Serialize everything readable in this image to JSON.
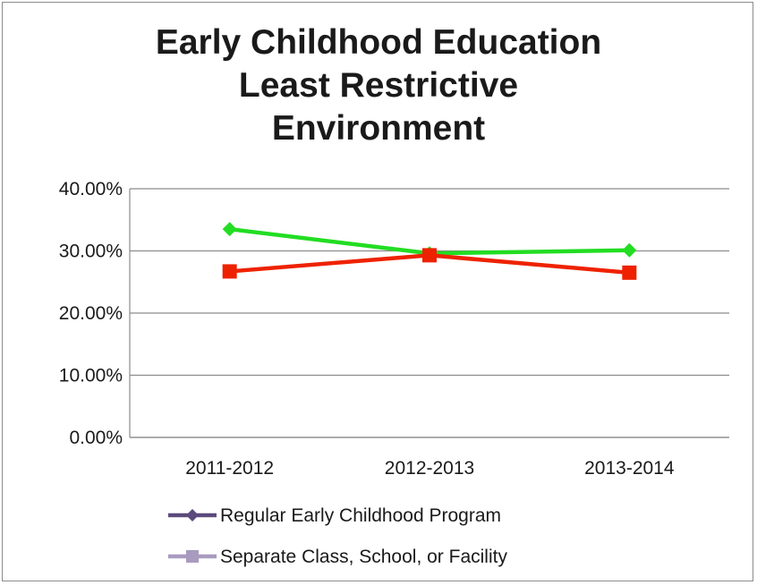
{
  "chart_data": {
    "type": "line",
    "title_lines": [
      "Early Childhood Education",
      "Least Restrictive",
      "Environment"
    ],
    "categories": [
      "2011-2012",
      "2012-2013",
      "2013-2014"
    ],
    "ylim": [
      0,
      40
    ],
    "ytick_labels": [
      "0.00%",
      "10.00%",
      "20.00%",
      "30.00%",
      "40.00%"
    ],
    "yticks": [
      0,
      10,
      20,
      30,
      40
    ],
    "grid": true,
    "legend_position": "bottom",
    "series": [
      {
        "name": "Regular Early Childhood Program",
        "values": [
          33.5,
          29.6,
          30.1
        ],
        "line_color": "#22dd22",
        "legend_color": "#5c4a7d",
        "marker": "diamond"
      },
      {
        "name": "Separate Class, School, or Facility",
        "values": [
          26.7,
          29.3,
          26.5
        ],
        "line_color": "#ee2200",
        "legend_color": "#a89bbf",
        "marker": "square"
      }
    ]
  }
}
